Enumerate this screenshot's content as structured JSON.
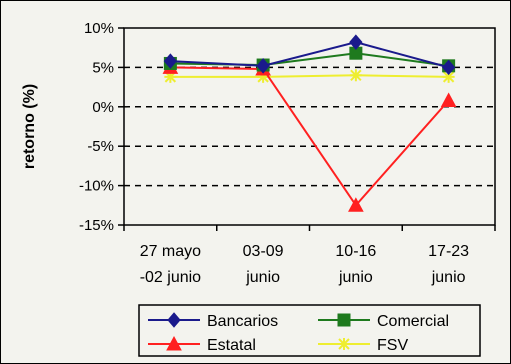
{
  "chart_data": {
    "type": "line",
    "ylabel": "retorno (%)",
    "ylim": [
      -15,
      10
    ],
    "yticks": [
      "10%",
      "5%",
      "0%",
      "-5%",
      "-10%",
      "-15%"
    ],
    "ytick_values": [
      10,
      5,
      0,
      -5,
      -10,
      -15
    ],
    "categories": [
      [
        "27 mayo",
        "-02 junio"
      ],
      [
        "03-09",
        "junio"
      ],
      [
        "10-16",
        "junio"
      ],
      [
        "17-23",
        "junio"
      ]
    ],
    "grid": "horizontal dashed",
    "legend_position": "bottom",
    "series": [
      {
        "name": "Bancarios",
        "values": [
          5.8,
          5.2,
          8.2,
          5.0
        ],
        "color": "#1a1a8c",
        "marker": "diamond"
      },
      {
        "name": "Comercial",
        "values": [
          5.5,
          5.3,
          6.8,
          5.2
        ],
        "color": "#1e7a1e",
        "marker": "square"
      },
      {
        "name": "Estatal",
        "values": [
          5.0,
          4.8,
          -12.5,
          0.8
        ],
        "color": "#ff2020",
        "marker": "triangle"
      },
      {
        "name": "FSV",
        "values": [
          3.8,
          3.8,
          4.0,
          3.8
        ],
        "color": "#eeee30",
        "marker": "star"
      }
    ]
  }
}
